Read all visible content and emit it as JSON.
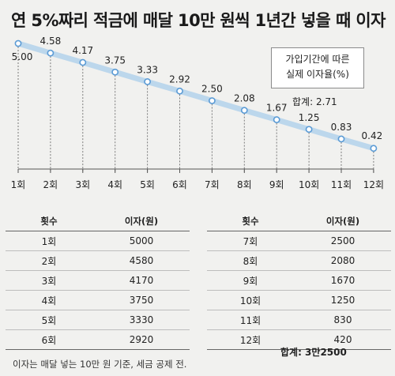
{
  "title": "연 5%짜리 적금에 매달 10만 원씩 1년간 넣을 때 이자",
  "note": {
    "line1": "가입기간에 따른",
    "line2": "실제 이자율(%)"
  },
  "total_rate_label": "합계: 2.71",
  "chart_data": {
    "type": "line",
    "categories": [
      "1회",
      "2회",
      "3회",
      "4회",
      "5회",
      "6회",
      "7회",
      "8회",
      "9회",
      "10회",
      "11회",
      "12회"
    ],
    "values": [
      5.0,
      4.58,
      4.17,
      3.75,
      3.33,
      2.92,
      2.5,
      2.08,
      1.67,
      1.25,
      0.83,
      0.42
    ],
    "value_labels": [
      "5.00",
      "4.58",
      "4.17",
      "3.75",
      "3.33",
      "2.92",
      "2.50",
      "2.08",
      "1.67",
      "1.25",
      "0.83",
      "0.42"
    ],
    "ylim": [
      0,
      5
    ],
    "line_color": "#bcd7ec",
    "marker_stroke": "#5b9bd5",
    "guide_color": "#7a7a7a"
  },
  "table": {
    "col_count": "횟수",
    "col_interest": "이자(원)",
    "left_rows": [
      {
        "count": "1회",
        "interest": "5000"
      },
      {
        "count": "2회",
        "interest": "4580"
      },
      {
        "count": "3회",
        "interest": "4170"
      },
      {
        "count": "4회",
        "interest": "3750"
      },
      {
        "count": "5회",
        "interest": "3330"
      },
      {
        "count": "6회",
        "interest": "2920"
      }
    ],
    "right_rows": [
      {
        "count": "7회",
        "interest": "2500"
      },
      {
        "count": "8회",
        "interest": "2080"
      },
      {
        "count": "9회",
        "interest": "1670"
      },
      {
        "count": "10회",
        "interest": "1250"
      },
      {
        "count": "11회",
        "interest": "830"
      },
      {
        "count": "12회",
        "interest": "420"
      }
    ],
    "total": "합계: 3만2500"
  },
  "footnote": "이자는 매달 넣는 10만 원 기준, 세금 공제 전."
}
